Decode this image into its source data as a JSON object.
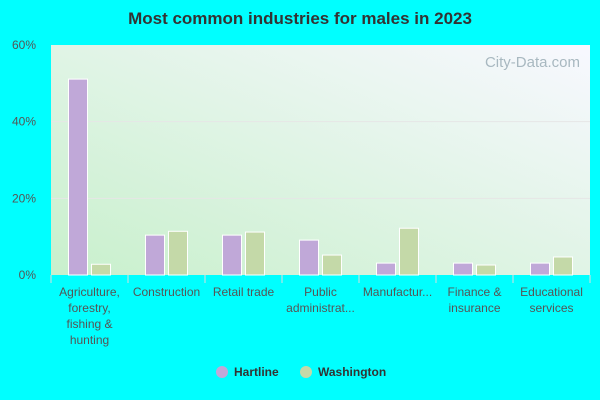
{
  "chart_data": {
    "type": "bar",
    "title": "Most common industries for males in 2023",
    "categories": [
      [
        "Agriculture,",
        "forestry,",
        "fishing &",
        "hunting"
      ],
      [
        "Construction"
      ],
      [
        "Retail trade"
      ],
      [
        "Public",
        "administrat..."
      ],
      [
        "Manufactur..."
      ],
      [
        "Finance &",
        "insurance"
      ],
      [
        "Educational",
        "services"
      ]
    ],
    "series": [
      {
        "name": "Hartline",
        "color": "#c0a8d8",
        "values": [
          51.1,
          10.4,
          10.4,
          9.1,
          3.1,
          3.1,
          3.1
        ]
      },
      {
        "name": "Washington",
        "color": "#c4d9a8",
        "values": [
          2.8,
          11.4,
          11.2,
          5.2,
          12.2,
          2.6,
          4.7
        ]
      }
    ],
    "ylim": [
      0,
      60
    ],
    "yticks": [
      "0%",
      "20%",
      "40%",
      "60%"
    ],
    "ytick_values": [
      0,
      20,
      40,
      60
    ],
    "grid": true,
    "legend": "bottom",
    "watermark": "City-Data.com"
  }
}
